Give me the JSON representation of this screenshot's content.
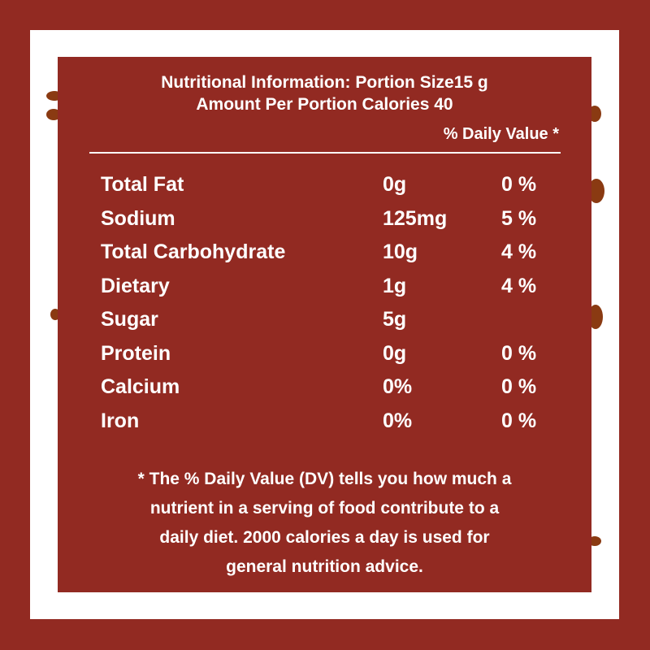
{
  "colors": {
    "brand": "#922a22",
    "background": "#ffffff"
  },
  "header": {
    "line1": "Nutritional Information: Portion Size15 g",
    "line2": "Amount Per Portion Calories 40",
    "daily_value_label": "% Daily Value *"
  },
  "rows": [
    {
      "name": "Total Fat",
      "amount": "0g",
      "dv": "0 %"
    },
    {
      "name": "Sodium",
      "amount": "125mg",
      "dv": "5 %"
    },
    {
      "name": "Total Carbohydrate",
      "amount": "10g",
      "dv": "4 %"
    },
    {
      "name": "Dietary",
      "amount": "1g",
      "dv": "4 %"
    },
    {
      "name": "Sugar",
      "amount": "5g",
      "dv": ""
    },
    {
      "name": "Protein",
      "amount": "0g",
      "dv": "0 %"
    },
    {
      "name": "Calcium",
      "amount": "0%",
      "dv": "0 %"
    },
    {
      "name": "Iron",
      "amount": "0%",
      "dv": "0 %"
    }
  ],
  "footnote": {
    "line1": "* The % Daily Value (DV) tells you how much a",
    "line2": "nutrient in a serving of food contribute to a",
    "line3": "daily diet. 2000 calories a day is used for",
    "line4": "general nutrition advice."
  }
}
